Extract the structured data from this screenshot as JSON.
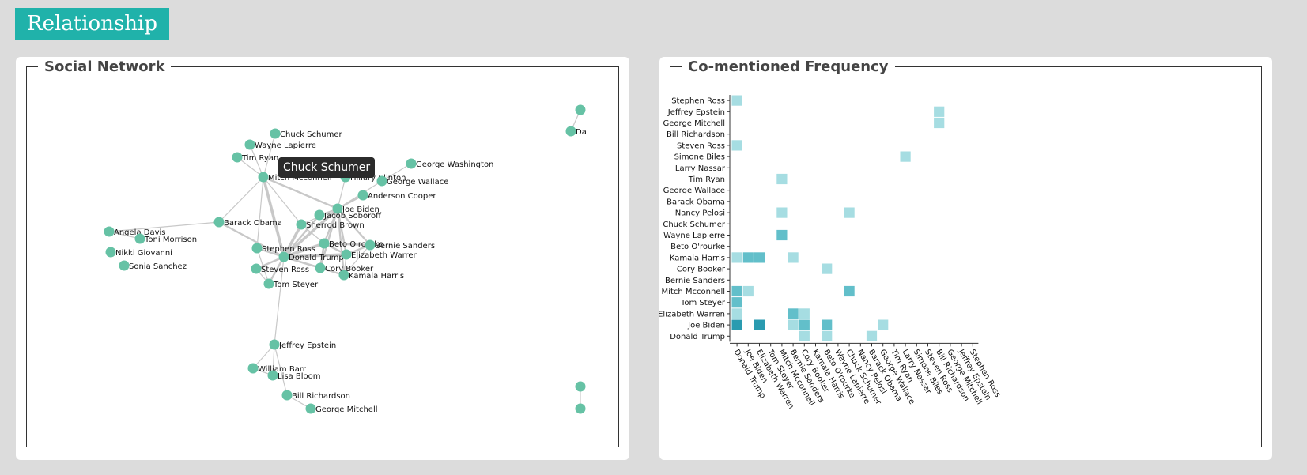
{
  "header": {
    "title": "Relationship"
  },
  "left_panel": {
    "legend": "Social Network"
  },
  "right_panel": {
    "legend": "Co-mentioned Frequency"
  },
  "tooltip": {
    "text": "Chuck Schumer"
  },
  "colors": {
    "accent": "#20b2aa",
    "node": "#66c2a5",
    "link": "#c8c8c8",
    "heat_low": "#a6dde2",
    "heat_mid": "#62bfca",
    "heat_high": "#2a9bb0"
  },
  "network": {
    "nodes": [
      {
        "id": "chuck",
        "label": "Chuck Schumer"
      },
      {
        "id": "wayne",
        "label": "Wayne Lapierre"
      },
      {
        "id": "timryan",
        "label": "Tim Ryan"
      },
      {
        "id": "mitch",
        "label": "Mitch Mcconnell"
      },
      {
        "id": "hillary",
        "label": "Hillary Clinton"
      },
      {
        "id": "gwallace",
        "label": "George Wallace"
      },
      {
        "id": "gwash",
        "label": "George Washington"
      },
      {
        "id": "anderson",
        "label": "Anderson Cooper"
      },
      {
        "id": "biden",
        "label": "Joe Biden"
      },
      {
        "id": "jacob",
        "label": "Jacob Soboroff"
      },
      {
        "id": "sherrod",
        "label": "Sherrod Brown"
      },
      {
        "id": "obama",
        "label": "Barack Obama"
      },
      {
        "id": "angela",
        "label": "Angela Davis"
      },
      {
        "id": "toni",
        "label": "Toni Morrison"
      },
      {
        "id": "nikki",
        "label": "Nikki Giovanni"
      },
      {
        "id": "sonia",
        "label": "Sonia Sanchez"
      },
      {
        "id": "beto",
        "label": "Beto O'rourke"
      },
      {
        "id": "bernie",
        "label": "Bernie Sanders"
      },
      {
        "id": "stephen",
        "label": "Stephen Ross"
      },
      {
        "id": "trump",
        "label": "Donald Trump"
      },
      {
        "id": "warren",
        "label": "Elizabeth Warren"
      },
      {
        "id": "steven",
        "label": "Steven Ross"
      },
      {
        "id": "cory",
        "label": "Cory Booker"
      },
      {
        "id": "kamala",
        "label": "Kamala Harris"
      },
      {
        "id": "steyer",
        "label": "Tom Steyer"
      },
      {
        "id": "epstein",
        "label": "Jeffrey Epstein"
      },
      {
        "id": "barr",
        "label": "William Barr"
      },
      {
        "id": "lisa",
        "label": "Lisa Bloom"
      },
      {
        "id": "richardson",
        "label": "Bill Richardson"
      },
      {
        "id": "gmitchell",
        "label": "George Mitchell"
      },
      {
        "id": "e1a",
        "label": ""
      },
      {
        "id": "e1b",
        "label": "Da"
      },
      {
        "id": "e2a",
        "label": ""
      },
      {
        "id": "e2b",
        "label": ""
      }
    ]
  },
  "heatmap": {
    "rows": [
      "Stephen Ross",
      "Jeffrey Epstein",
      "George Mitchell",
      "Bill Richardson",
      "Steven Ross",
      "Simone Biles",
      "Larry Nassar",
      "Tim Ryan",
      "George Wallace",
      "Barack Obama",
      "Nancy Pelosi",
      "Chuck Schumer",
      "Wayne Lapierre",
      "Beto O'rourke",
      "Kamala Harris",
      "Cory Booker",
      "Bernie Sanders",
      "Mitch Mcconnell",
      "Tom Steyer",
      "Elizabeth Warren",
      "Joe Biden",
      "Donald Trump"
    ],
    "columns": [
      "Donald Trump",
      "Joe Biden",
      "Elizabeth Warren",
      "Tom Steyer",
      "Mitch Mcconnell",
      "Bernie Sanders",
      "Cory Booker",
      "Kamala Harris",
      "Beto O'rourke",
      "Wayne Lapierre",
      "Chuck Schumer",
      "Nancy Pelosi",
      "Barack Obama",
      "George Wallace",
      "Tim Ryan",
      "Larry Nassar",
      "Simone Biles",
      "Steven Ross",
      "Bill Richardson",
      "George Mitchell",
      "Jeffrey Epstein",
      "Stephen Ross"
    ],
    "cells": [
      {
        "row": 0,
        "col": 0,
        "level": 1
      },
      {
        "row": 1,
        "col": 18,
        "level": 1
      },
      {
        "row": 2,
        "col": 18,
        "level": 1
      },
      {
        "row": 4,
        "col": 0,
        "level": 1
      },
      {
        "row": 5,
        "col": 15,
        "level": 1
      },
      {
        "row": 7,
        "col": 4,
        "level": 1
      },
      {
        "row": 10,
        "col": 4,
        "level": 1
      },
      {
        "row": 10,
        "col": 10,
        "level": 1
      },
      {
        "row": 12,
        "col": 4,
        "level": 2
      },
      {
        "row": 14,
        "col": 0,
        "level": 1
      },
      {
        "row": 14,
        "col": 1,
        "level": 2
      },
      {
        "row": 14,
        "col": 2,
        "level": 2
      },
      {
        "row": 14,
        "col": 5,
        "level": 1
      },
      {
        "row": 15,
        "col": 8,
        "level": 1
      },
      {
        "row": 17,
        "col": 0,
        "level": 2
      },
      {
        "row": 17,
        "col": 1,
        "level": 1
      },
      {
        "row": 17,
        "col": 10,
        "level": 2
      },
      {
        "row": 18,
        "col": 0,
        "level": 2
      },
      {
        "row": 19,
        "col": 0,
        "level": 1
      },
      {
        "row": 19,
        "col": 5,
        "level": 2
      },
      {
        "row": 19,
        "col": 6,
        "level": 1
      },
      {
        "row": 20,
        "col": 0,
        "level": 3
      },
      {
        "row": 20,
        "col": 2,
        "level": 3
      },
      {
        "row": 20,
        "col": 5,
        "level": 1
      },
      {
        "row": 20,
        "col": 6,
        "level": 2
      },
      {
        "row": 20,
        "col": 8,
        "level": 2
      },
      {
        "row": 20,
        "col": 13,
        "level": 1
      },
      {
        "row": 21,
        "col": 6,
        "level": 1
      },
      {
        "row": 21,
        "col": 8,
        "level": 1
      },
      {
        "row": 21,
        "col": 12,
        "level": 1
      }
    ]
  }
}
